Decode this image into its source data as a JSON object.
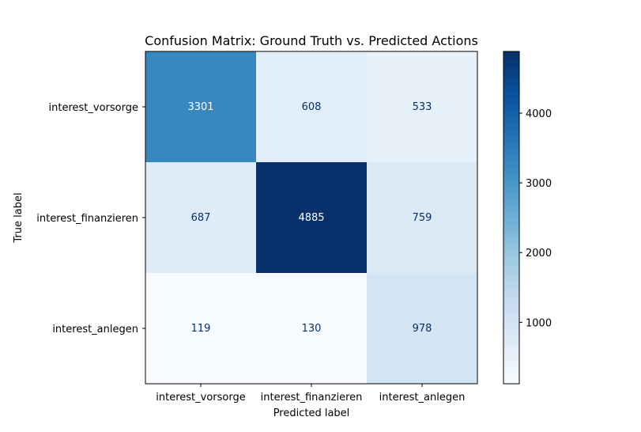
{
  "chart_data": {
    "type": "heatmap",
    "title": "Confusion Matrix: Ground Truth vs. Predicted Actions",
    "xlabel": "Predicted label",
    "ylabel": "True label",
    "x_categories": [
      "interest_vorsorge",
      "interest_finanzieren",
      "interest_anlegen"
    ],
    "y_categories": [
      "interest_vorsorge",
      "interest_finanzieren",
      "interest_anlegen"
    ],
    "values": [
      [
        3301,
        608,
        533
      ],
      [
        687,
        4885,
        759
      ],
      [
        119,
        130,
        978
      ]
    ],
    "colormap": "Blues",
    "value_range": [
      119,
      4885
    ],
    "colorbar": {
      "ticks": [
        1000,
        2000,
        3000,
        4000
      ],
      "tick_labels": [
        "1000",
        "2000",
        "3000",
        "4000"
      ]
    },
    "grid": false
  }
}
